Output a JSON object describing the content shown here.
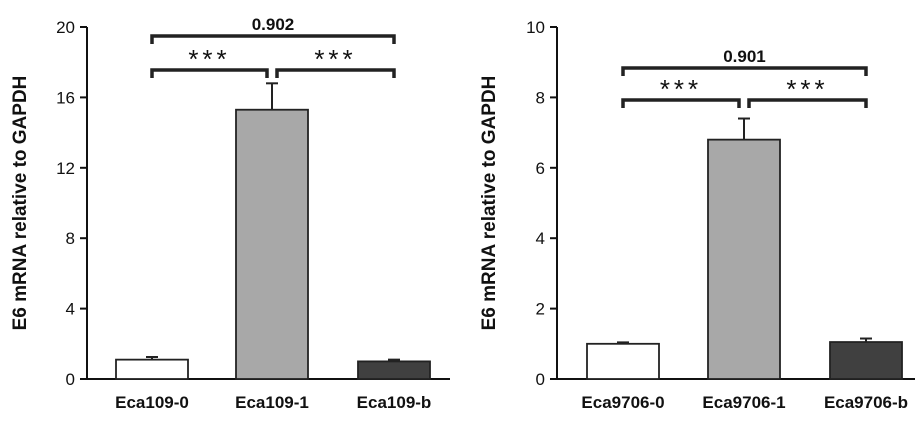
{
  "chart_data": [
    {
      "type": "bar",
      "ylabel": "E6 mRNA relative to GAPDH",
      "ylim": [
        0,
        20
      ],
      "yticks": [
        0,
        4,
        8,
        12,
        16,
        20
      ],
      "categories": [
        "Eca109-0",
        "Eca109-1",
        "Eca109-b"
      ],
      "values": [
        1.1,
        15.3,
        1.0
      ],
      "errors": [
        0.15,
        1.5,
        0.1
      ],
      "bar_colors": [
        "#ffffff",
        "#a8a8a8",
        "#404040"
      ],
      "brackets": [
        {
          "from": 0,
          "to": 2,
          "label": "0.902",
          "level": 2
        },
        {
          "from": 0,
          "to": 1,
          "label": "***",
          "level": 1
        },
        {
          "from": 1,
          "to": 2,
          "label": "***",
          "level": 1
        }
      ]
    },
    {
      "type": "bar",
      "ylabel": "E6 mRNA relative to GAPDH",
      "ylim": [
        0,
        10
      ],
      "yticks": [
        0,
        2,
        4,
        6,
        8,
        10
      ],
      "categories": [
        "Eca9706-0",
        "Eca9706-1",
        "Eca9706-b"
      ],
      "values": [
        1.0,
        6.8,
        1.05
      ],
      "errors": [
        0.04,
        0.6,
        0.1
      ],
      "bar_colors": [
        "#ffffff",
        "#a8a8a8",
        "#404040"
      ],
      "brackets": [
        {
          "from": 0,
          "to": 2,
          "label": "0.901",
          "level": 2
        },
        {
          "from": 0,
          "to": 1,
          "label": "***",
          "level": 1
        },
        {
          "from": 1,
          "to": 2,
          "label": "***",
          "level": 1
        }
      ]
    }
  ]
}
